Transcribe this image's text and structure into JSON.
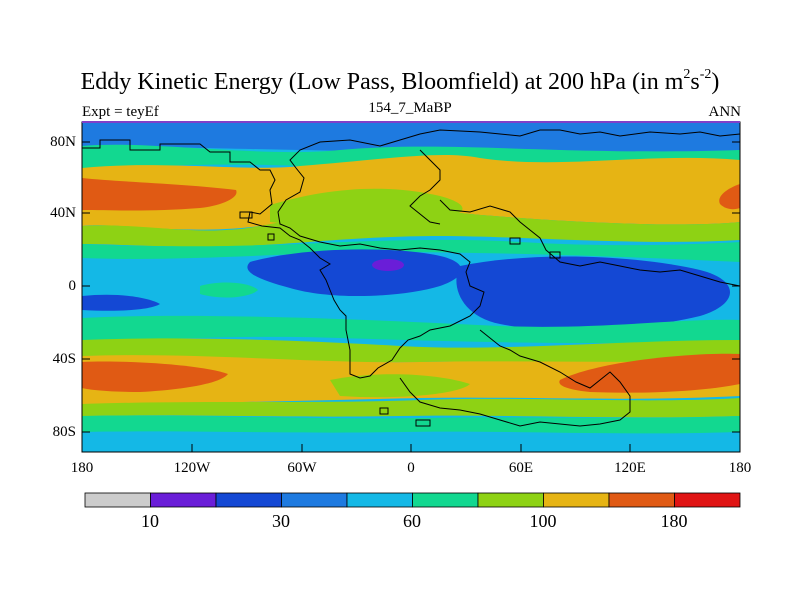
{
  "title": {
    "main": "Eddy Kinetic Energy (Low Pass, Bloomfield) at 200 hPa (in m",
    "sup1": "2",
    "mid": "s",
    "sup2": "-2",
    "end": ")"
  },
  "subtitles": {
    "left": "Expt = teyEf",
    "center": "154_7_MaBP",
    "right": "ANN"
  },
  "y_axis": {
    "ticks": [
      "80N",
      "40N",
      "0",
      "40S",
      "80S"
    ]
  },
  "x_axis": {
    "ticks": [
      "180",
      "120W",
      "60W",
      "0",
      "60E",
      "120E",
      "180"
    ]
  },
  "colorbar": {
    "colors": [
      "#cccccc",
      "#6a1ed8",
      "#1448d4",
      "#1e7ae0",
      "#14b8e6",
      "#12d890",
      "#8ed214",
      "#e6b414",
      "#e05a14",
      "#e01414"
    ],
    "labels": [
      "10",
      "30",
      "60",
      "100",
      "180"
    ]
  },
  "palette": {
    "blue": "#1448d4",
    "mid_blue": "#1e7ae0",
    "cyan": "#14b8e6",
    "green": "#12d890",
    "lime": "#8ed214",
    "yellow": "#e6b414",
    "orange": "#e05a14",
    "purple": "#6a1ed8",
    "frame": "#8040c8"
  }
}
